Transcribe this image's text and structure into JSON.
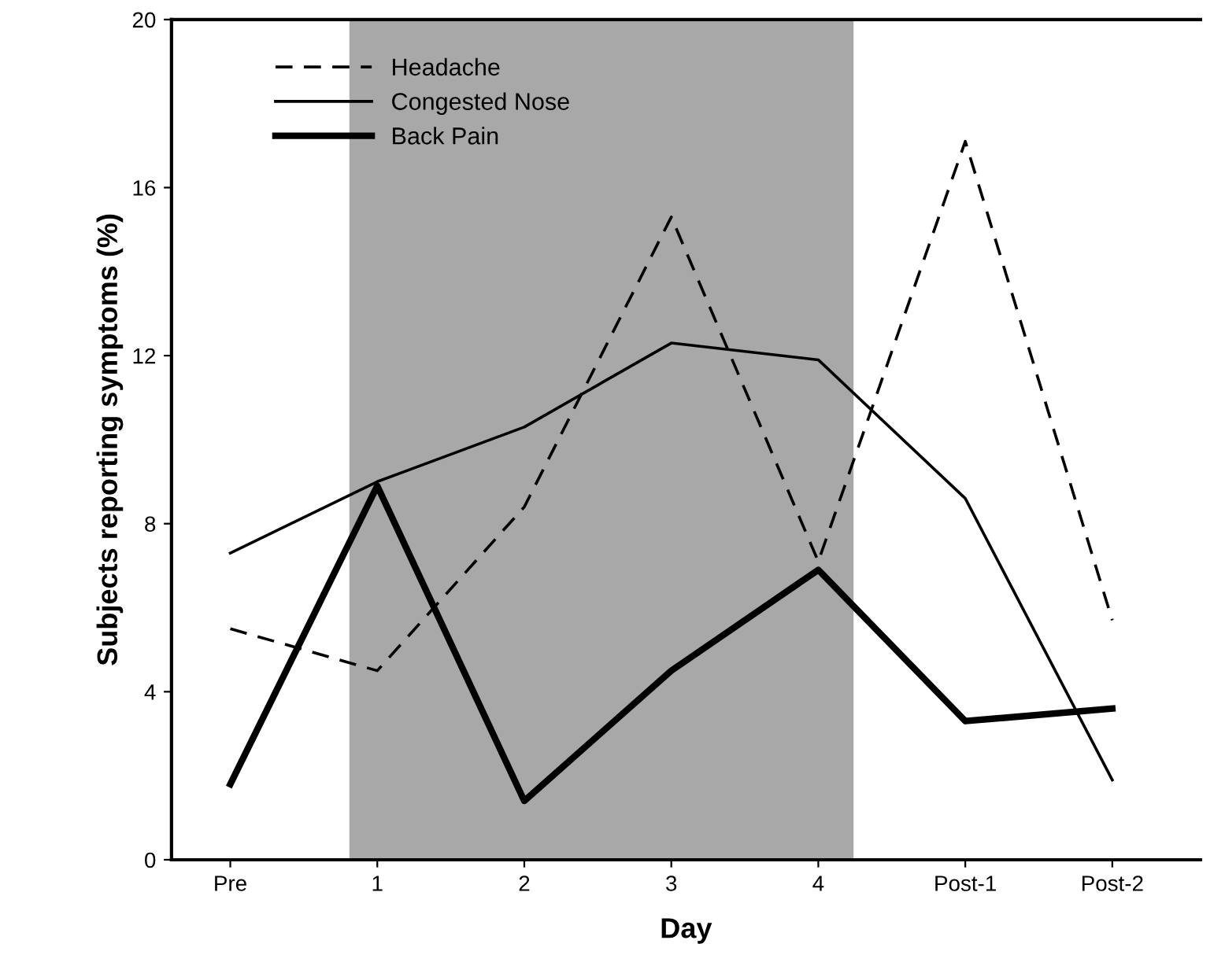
{
  "chart_data": {
    "type": "line",
    "xlabel": "Day",
    "ylabel": "Subjects reporting symptoms (%)",
    "x": [
      0,
      1,
      2,
      3,
      4,
      5,
      6
    ],
    "xlim": [
      -0.4,
      6.6
    ],
    "xticks": [
      {
        "value": 0,
        "label": "Pre"
      },
      1,
      2,
      3,
      4,
      {
        "value": 5,
        "label": "Post-1"
      },
      {
        "value": 6,
        "label": "Post-2"
      }
    ],
    "ylim": [
      0,
      20
    ],
    "yticks": [
      0,
      4,
      8,
      12,
      16,
      20
    ],
    "series": [
      {
        "name": "Headache",
        "color": "#000000",
        "line_style": "dashed",
        "values": [
          5.5,
          4.5,
          8.4,
          15.3,
          7.1,
          17.1,
          5.7
        ]
      },
      {
        "name": "Congested Nose",
        "color": "#000000",
        "line_style": "solid",
        "values": [
          7.3,
          9.0,
          10.3,
          12.3,
          11.9,
          8.6,
          1.9
        ]
      },
      {
        "name": "Back Pain",
        "color": "#000000",
        "line_style": "solid",
        "values": [
          1.8,
          8.9,
          1.4,
          4.5,
          6.9,
          3.3,
          3.6
        ]
      }
    ],
    "bands": [
      {
        "axis": "x",
        "from": 0.81,
        "to": 4.24,
        "color": "#a8a8a8"
      }
    ],
    "grid": false,
    "legend": "top left",
    "marker": "none"
  }
}
